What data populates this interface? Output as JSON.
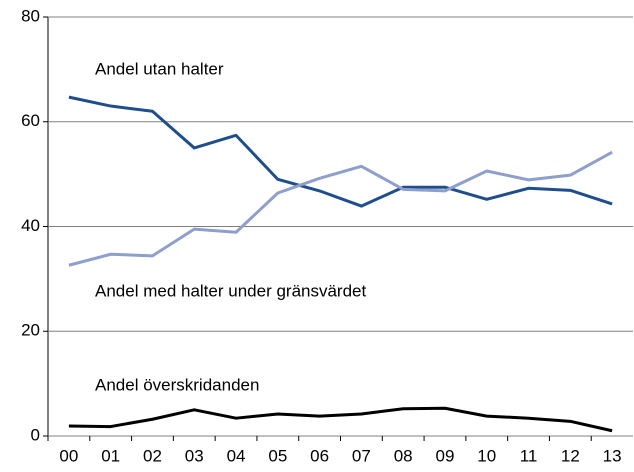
{
  "chart_data": {
    "type": "line",
    "categories": [
      "00",
      "01",
      "02",
      "03",
      "04",
      "05",
      "06",
      "07",
      "08",
      "09",
      "10",
      "11",
      "12",
      "13"
    ],
    "series": [
      {
        "name": "Andel utan halter",
        "color": "#1f4e8c",
        "values": [
          64.7,
          63.0,
          62.0,
          55.0,
          57.4,
          49.0,
          46.8,
          43.9,
          47.5,
          47.5,
          45.2,
          47.3,
          46.9,
          44.3
        ]
      },
      {
        "name": "Andel med halter under gränsvärdet",
        "color": "#8e9fcc",
        "values": [
          32.6,
          34.7,
          34.4,
          39.5,
          38.9,
          46.4,
          49.2,
          51.5,
          47.1,
          46.8,
          50.6,
          48.9,
          49.8,
          54.2
        ]
      },
      {
        "name": "Andel överskridanden",
        "color": "#000000",
        "values": [
          1.9,
          1.8,
          3.2,
          5.0,
          3.4,
          4.2,
          3.8,
          4.2,
          5.2,
          5.3,
          3.8,
          3.4,
          2.8,
          1.0
        ]
      }
    ],
    "ylim": [
      0,
      80
    ],
    "yticks": [
      0,
      20,
      40,
      60,
      80
    ],
    "grid": true
  }
}
